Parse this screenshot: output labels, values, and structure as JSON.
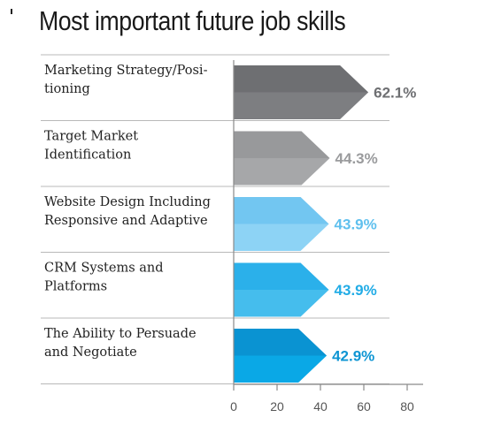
{
  "title": "Most important future job skills",
  "chart_data": {
    "type": "bar",
    "orientation": "horizontal",
    "title": "Most important future job skills",
    "categories": [
      [
        "Marketing Strategy/Posi-",
        "tioning"
      ],
      [
        "Target Market",
        "Identification"
      ],
      [
        "Website Design Including",
        "Responsive and Adaptive"
      ],
      [
        "CRM Systems and",
        "Platforms"
      ],
      [
        "The Ability to Persuade",
        "and Negotiate"
      ]
    ],
    "values": [
      62.1,
      44.3,
      43.9,
      43.9,
      42.9
    ],
    "value_labels": [
      "62.1%",
      "44.3%",
      "43.9%",
      "43.9%",
      "42.9%"
    ],
    "colors": [
      {
        "top": "#6e6f72",
        "bottom": "#7d7e81",
        "label": "#6e6f72"
      },
      {
        "top": "#98999b",
        "bottom": "#a6a7a9",
        "label": "#9a9b9d"
      },
      {
        "top": "#72c6f1",
        "bottom": "#8dd3f5",
        "label": "#5fc0ee"
      },
      {
        "top": "#2bb0ea",
        "bottom": "#45bded",
        "label": "#22ace6"
      },
      {
        "top": "#0a93d2",
        "bottom": "#0aa8e6",
        "label": "#0e95d3"
      }
    ],
    "x_ticks": [
      0,
      20,
      40,
      60,
      80
    ],
    "xlim": [
      0,
      80
    ],
    "grid": false
  }
}
